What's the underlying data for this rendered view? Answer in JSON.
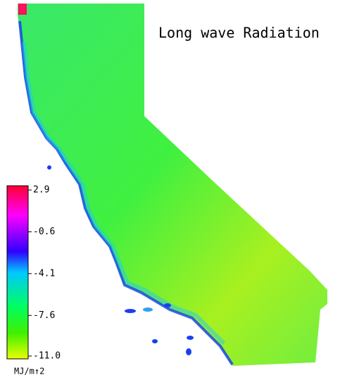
{
  "title": "Long wave Radiation",
  "colorbar": {
    "lim": [
      -11,
      2.9
    ],
    "ticks": [
      2.9,
      -0.6,
      -4.1,
      -7.6,
      {
        "value": -11,
        "label": "-11.0"
      }
    ],
    "unit": "MJ/m↑2"
  }
}
